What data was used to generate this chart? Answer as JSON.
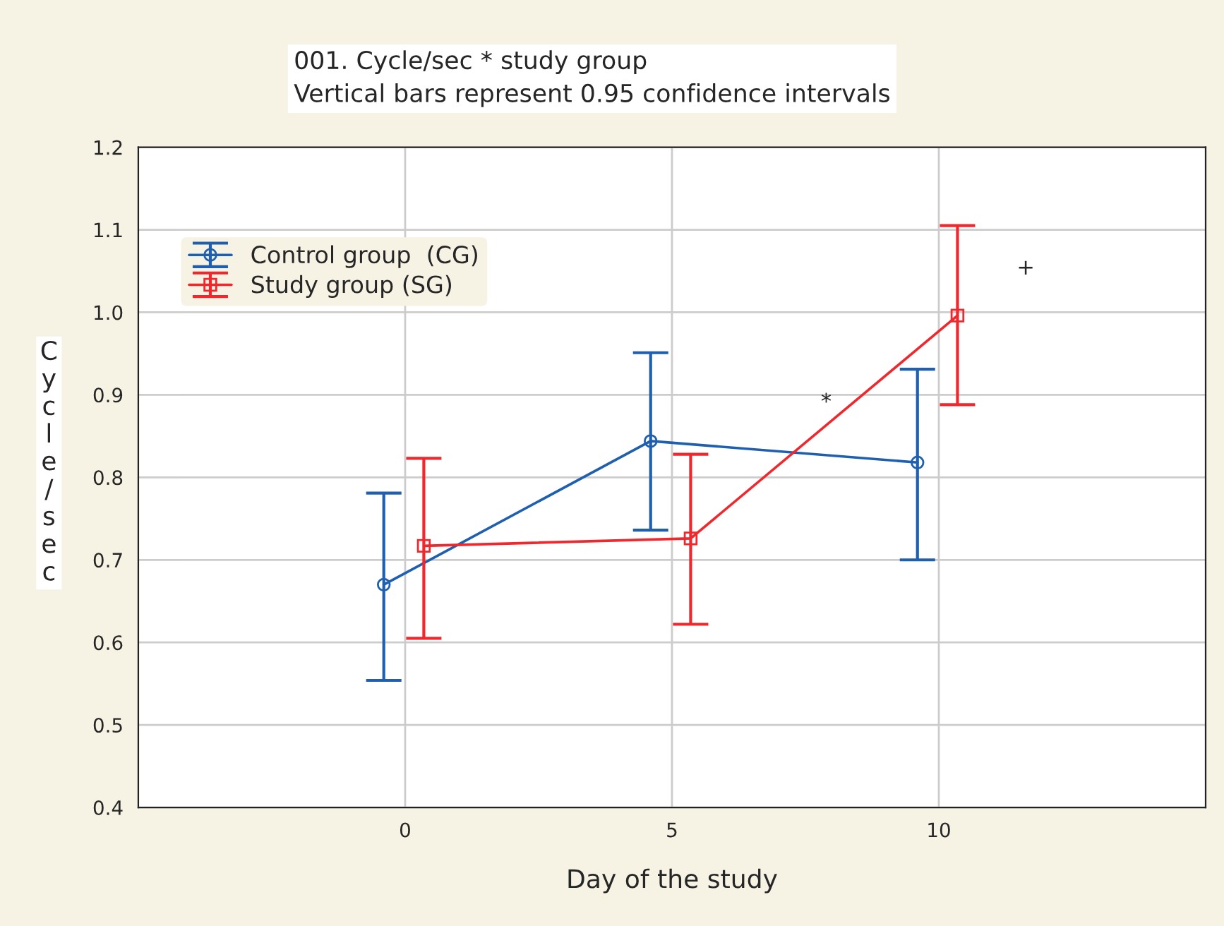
{
  "chart_data": {
    "type": "line",
    "title": "001. Cycle/sec * study group\nVertical bars represent 0.95 confidence intervals",
    "xlabel": "Day of the study",
    "ylabel": "Cycle/sec",
    "xlim": [
      -5,
      15
    ],
    "xticks": [
      0,
      5,
      10
    ],
    "ylim": [
      0.4,
      1.2
    ],
    "yticks": [
      {
        "value": 0.4,
        "label": "0.4"
      },
      {
        "value": 0.5,
        "label": "0.5"
      },
      {
        "value": 0.6,
        "label": "0.6"
      },
      {
        "value": 0.7,
        "label": "0.7"
      },
      {
        "value": 0.8,
        "label": "0.8"
      },
      {
        "value": 0.9,
        "label": "0.9"
      },
      {
        "value": 1.0,
        "label": "1.0"
      },
      {
        "value": 1.1,
        "label": "1.1"
      },
      {
        "value": 1.2,
        "label": "1.2"
      }
    ],
    "grid": true,
    "legend": "top left",
    "line_style": "solid",
    "series": [
      {
        "name": "Control group  (CG)",
        "color": "#1f5fb0",
        "marker": "circle",
        "x": [
          -0.4,
          4.6,
          9.6
        ],
        "values": [
          0.67,
          0.844,
          0.818
        ],
        "errors": [
          [
            0.554,
            0.781
          ],
          [
            0.736,
            0.951
          ],
          [
            0.7,
            0.931
          ]
        ]
      },
      {
        "name": "Study group (SG)",
        "color": "#f0282d",
        "marker": "square",
        "x": [
          0.35,
          5.35,
          10.35
        ],
        "values": [
          0.717,
          0.726,
          0.996
        ],
        "errors": [
          [
            0.605,
            0.823
          ],
          [
            0.622,
            0.828
          ],
          [
            0.888,
            1.105
          ]
        ]
      }
    ],
    "annotations": [
      "*",
      "+"
    ]
  }
}
